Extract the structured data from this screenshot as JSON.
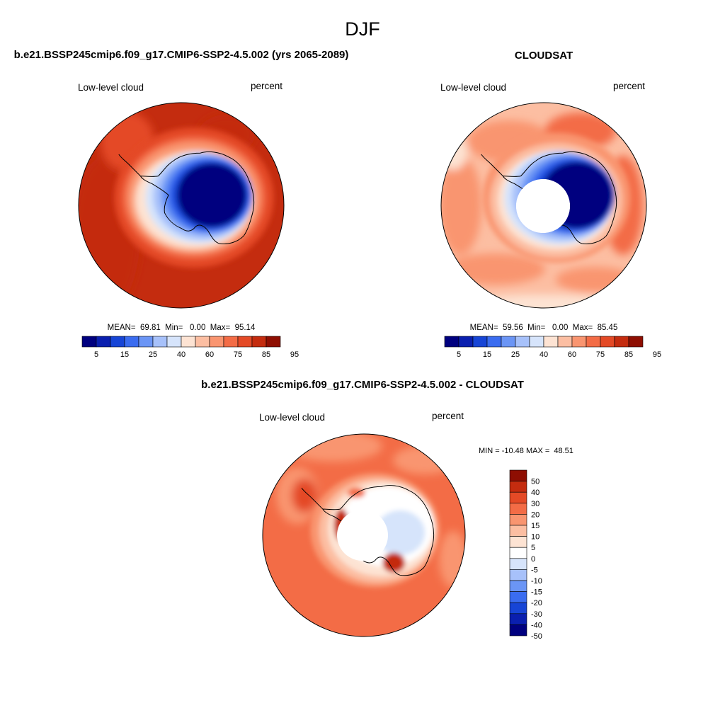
{
  "page": {
    "title": "DJF"
  },
  "panels": [
    {
      "title": "b.e21.BSSP245cmip6.f09_g17.CMIP6-SSP2-4.5.002 (yrs 2065-2089)",
      "left_label": "Low-level cloud",
      "right_label": "percent",
      "stats": "MEAN=  69.81  Min=   0.00  Max=  95.14",
      "colorbar": {
        "colors": [
          "#00007f",
          "#0a1faf",
          "#1745d6",
          "#3a6cf0",
          "#6b95f5",
          "#a7c1fa",
          "#d6e4fb",
          "#fde3d3",
          "#fcbea2",
          "#f99570",
          "#f36c46",
          "#e44a26",
          "#c42c0f",
          "#8e0e02"
        ],
        "tick_labels": [
          "5",
          "15",
          "25",
          "40",
          "60",
          "75",
          "85",
          "95"
        ]
      }
    },
    {
      "title": "CLOUDSAT",
      "left_label": "Low-level cloud",
      "right_label": "percent",
      "stats": "MEAN=  59.56  Min=   0.00  Max=  85.45",
      "colorbar": {
        "colors": [
          "#00007f",
          "#0a1faf",
          "#1745d6",
          "#3a6cf0",
          "#6b95f5",
          "#a7c1fa",
          "#d6e4fb",
          "#fde3d3",
          "#fcbea2",
          "#f99570",
          "#f36c46",
          "#e44a26",
          "#c42c0f",
          "#8e0e02"
        ],
        "tick_labels": [
          "5",
          "15",
          "25",
          "40",
          "60",
          "75",
          "85",
          "95"
        ]
      }
    },
    {
      "title": "b.e21.BSSP245cmip6.f09_g17.CMIP6-SSP2-4.5.002 - CLOUDSAT",
      "left_label": "Low-level cloud",
      "right_label": "percent",
      "stats": "MIN = -10.48 MAX =  48.51",
      "colorbar": {
        "colors": [
          "#8e0e02",
          "#c42c0f",
          "#e44a26",
          "#f36c46",
          "#f99570",
          "#fcbea2",
          "#fde3d3",
          "#ffffff",
          "#d6e4fb",
          "#a7c1fa",
          "#6b95f5",
          "#3a6cf0",
          "#1745d6",
          "#0a1faf",
          "#00007f"
        ],
        "tick_labels": [
          "50",
          "40",
          "30",
          "20",
          "15",
          "10",
          "5",
          "0",
          "-5",
          "-10",
          "-15",
          "-20",
          "-30",
          "-40",
          "-50"
        ]
      }
    }
  ],
  "chart_data": [
    {
      "type": "heatmap",
      "projection": "south-polar-stereographic",
      "title": "b.e21.BSSP245cmip6.f09_g17.CMIP6-SSP2-4.5.002 (yrs 2065-2089)",
      "variable": "Low-level cloud",
      "units": "percent",
      "mean": 69.81,
      "min": 0.0,
      "max": 95.14,
      "contour_levels": [
        5,
        10,
        15,
        20,
        25,
        30,
        40,
        50,
        60,
        70,
        75,
        80,
        85,
        90,
        95
      ]
    },
    {
      "type": "heatmap",
      "projection": "south-polar-stereographic",
      "title": "CLOUDSAT",
      "variable": "Low-level cloud",
      "units": "percent",
      "mean": 59.56,
      "min": 0.0,
      "max": 85.45,
      "contour_levels": [
        5,
        10,
        15,
        20,
        25,
        30,
        40,
        50,
        60,
        70,
        75,
        80,
        85,
        90,
        95
      ]
    },
    {
      "type": "heatmap",
      "projection": "south-polar-stereographic",
      "title": "b.e21.BSSP245cmip6.f09_g17.CMIP6-SSP2-4.5.002 - CLOUDSAT",
      "variable": "Low-level cloud",
      "units": "percent",
      "min": -10.48,
      "max": 48.51,
      "contour_levels": [
        -50,
        -40,
        -30,
        -20,
        -15,
        -10,
        -5,
        0,
        5,
        10,
        15,
        20,
        30,
        40,
        50
      ]
    }
  ]
}
